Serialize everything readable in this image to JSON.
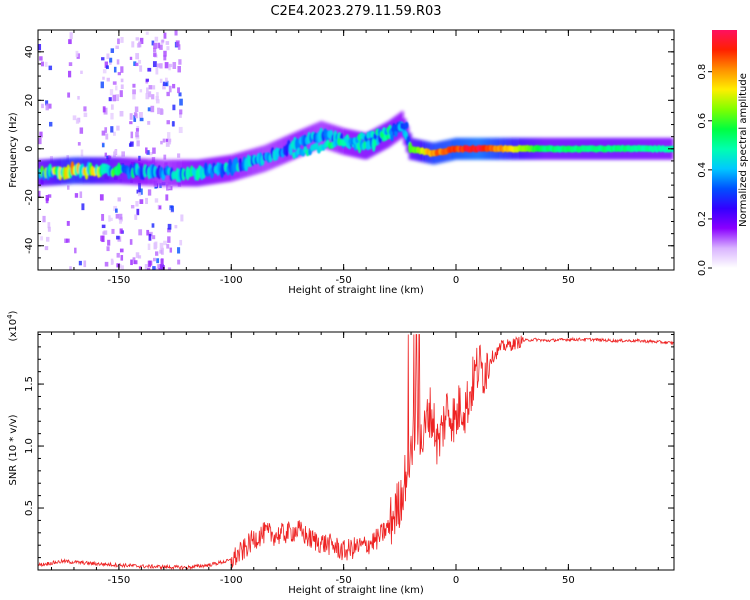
{
  "title": "C2E4.2023.279.11.59.R03",
  "chart_data": [
    {
      "type": "heatmap",
      "xlabel": "Height of straight line (km)",
      "ylabel": "Frequency (Hz)",
      "xlim": [
        -186,
        97
      ],
      "ylim": [
        -50,
        49
      ],
      "xticks": [
        -150,
        -100,
        -50,
        0,
        50
      ],
      "yticks": [
        -40,
        -20,
        0,
        20,
        40
      ],
      "colorbar": {
        "label": "Normalized spectral amplitude",
        "range": [
          0.0,
          0.97
        ],
        "ticks": [
          "0.0",
          "0.2",
          "0.4",
          "0.6",
          "0.8"
        ],
        "colors": [
          "#ffffff",
          "#d9b3ff",
          "#8a00ff",
          "#3300ff",
          "#0050ff",
          "#00c8ff",
          "#00ffb0",
          "#00ff40",
          "#80ff00",
          "#ffee00",
          "#ff9000",
          "#ff2000",
          "#ff1060"
        ]
      },
      "ridge": [
        {
          "x": -186,
          "freq": -10,
          "amp": 0.55
        },
        {
          "x": -170,
          "freq": -9,
          "amp": 0.8
        },
        {
          "x": -150,
          "freq": -9,
          "amp": 0.55
        },
        {
          "x": -130,
          "freq": -10,
          "amp": 0.4
        },
        {
          "x": -115,
          "freq": -10,
          "amp": 0.5
        },
        {
          "x": -100,
          "freq": -8,
          "amp": 0.45
        },
        {
          "x": -85,
          "freq": -4,
          "amp": 0.4
        },
        {
          "x": -70,
          "freq": 2,
          "amp": 0.45
        },
        {
          "x": -60,
          "freq": 6,
          "amp": 0.4
        },
        {
          "x": -50,
          "freq": 3,
          "amp": 0.45
        },
        {
          "x": -40,
          "freq": 1,
          "amp": 0.5
        },
        {
          "x": -30,
          "freq": 6,
          "amp": 0.5
        },
        {
          "x": -24,
          "freq": 10,
          "amp": 0.45
        },
        {
          "x": -20,
          "freq": 0,
          "amp": 0.6
        },
        {
          "x": -10,
          "freq": -2,
          "amp": 0.85
        },
        {
          "x": 0,
          "freq": 0,
          "amp": 0.9
        },
        {
          "x": 10,
          "freq": 0,
          "amp": 0.97
        },
        {
          "x": 25,
          "freq": 0,
          "amp": 0.75
        },
        {
          "x": 40,
          "freq": 0,
          "amp": 0.55
        },
        {
          "x": 70,
          "freq": 0,
          "amp": 0.55
        },
        {
          "x": 97,
          "freq": 0,
          "amp": 0.5
        }
      ]
    },
    {
      "type": "line",
      "xlabel": "Height of straight line (km)",
      "ylabel": "SNR (10 * v/v)",
      "y_multiplier": "(x10",
      "y_multiplier_exp": "4",
      "y_multiplier_close": ")",
      "xlim": [
        -186,
        97
      ],
      "ylim": [
        0,
        1.92
      ],
      "xticks": [
        -150,
        -100,
        -50,
        0,
        50
      ],
      "yticks": [
        0.5,
        1.0,
        1.5
      ],
      "series": [
        {
          "color": "#ee2222",
          "x": [
            -186,
            -175,
            -160,
            -140,
            -120,
            -110,
            -100,
            -95,
            -90,
            -85,
            -80,
            -75,
            -70,
            -65,
            -60,
            -55,
            -50,
            -45,
            -40,
            -35,
            -30,
            -25,
            -22,
            -20,
            -18,
            -16,
            -14,
            -12,
            -10,
            -8,
            -6,
            -4,
            -2,
            0,
            2,
            4,
            6,
            8,
            10,
            12,
            15,
            18,
            20,
            25,
            30,
            35,
            40,
            50,
            60,
            70,
            80,
            90,
            97
          ],
          "y": [
            0.04,
            0.07,
            0.05,
            0.03,
            0.02,
            0.04,
            0.08,
            0.15,
            0.25,
            0.3,
            0.28,
            0.3,
            0.32,
            0.25,
            0.22,
            0.2,
            0.15,
            0.18,
            0.2,
            0.25,
            0.35,
            0.55,
            0.8,
            1.0,
            1.2,
            1.0,
            1.1,
            1.3,
            1.2,
            1.0,
            1.15,
            1.3,
            1.25,
            1.2,
            1.35,
            1.3,
            1.4,
            1.55,
            1.65,
            1.6,
            1.7,
            1.75,
            1.8,
            1.82,
            1.85,
            1.86,
            1.85,
            1.86,
            1.86,
            1.85,
            1.85,
            1.84,
            1.83
          ]
        }
      ]
    }
  ]
}
